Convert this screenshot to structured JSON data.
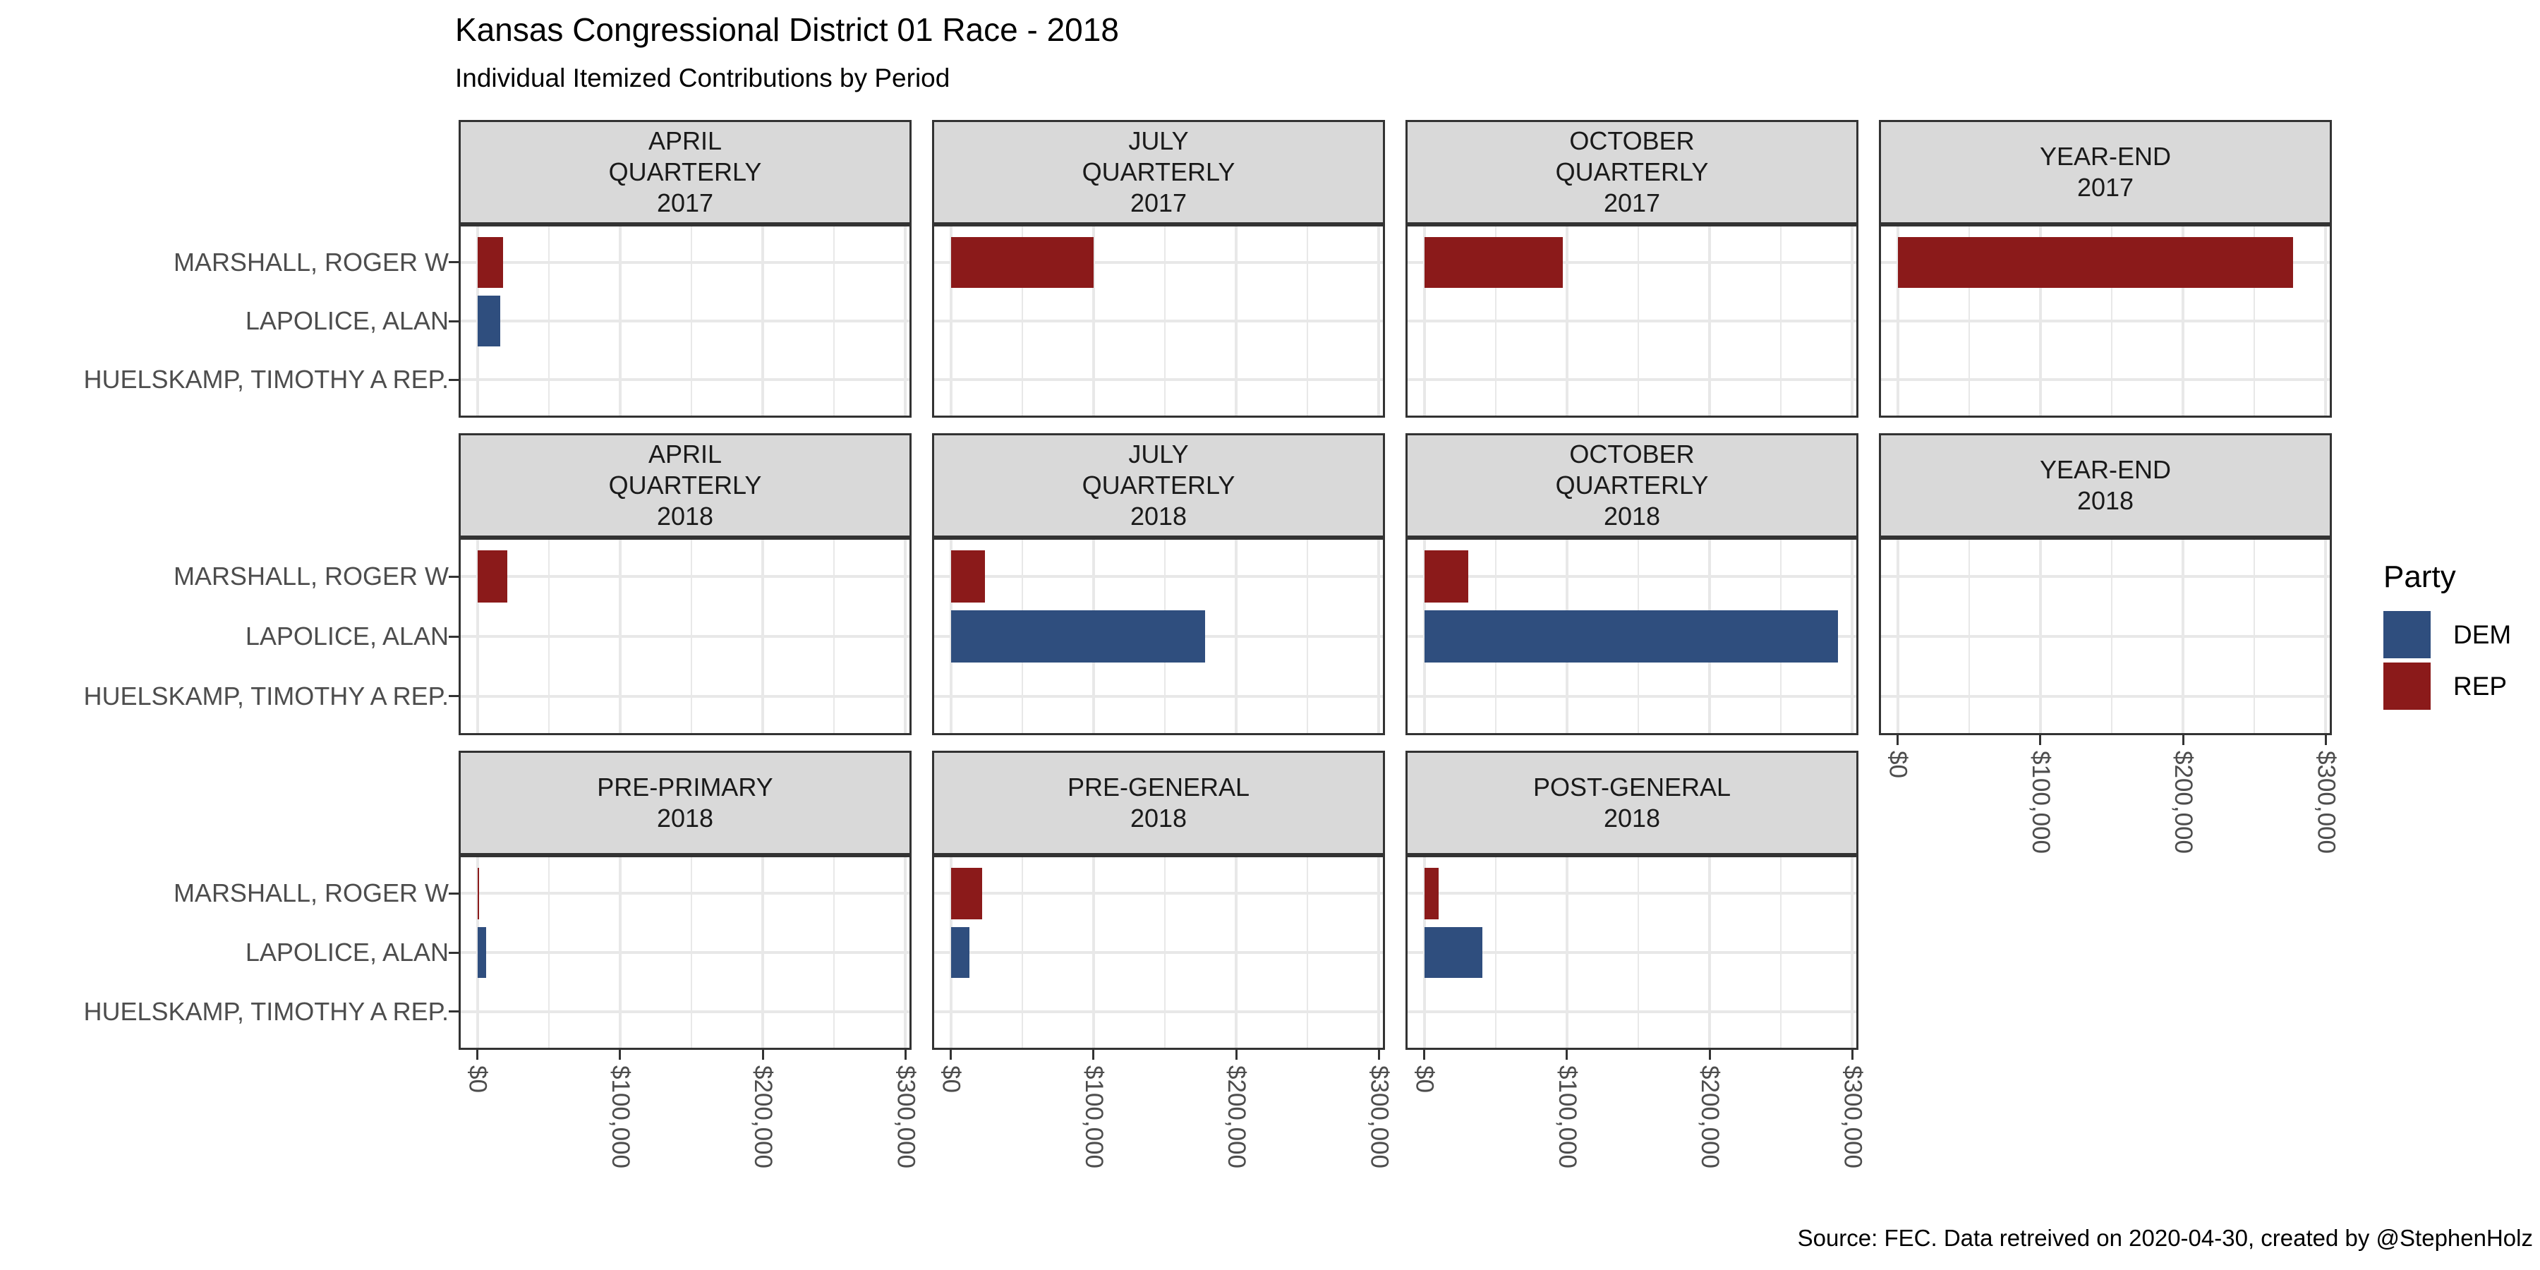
{
  "title": "Kansas Congressional District 01 Race - 2018",
  "subtitle": "Individual Itemized Contributions by Period",
  "caption": "Source: FEC. Data retreived on 2020-04-30, created by @StephenHolz",
  "legend": {
    "title": "Party",
    "position": "right",
    "items": [
      {
        "label": "DEM",
        "color": "#2F4E7E"
      },
      {
        "label": "REP",
        "color": "#8B1A1A"
      }
    ]
  },
  "colors": {
    "strip_background": "#D9D9D9",
    "panel_border": "#333333",
    "grid": "#E8E8E8",
    "axis_text": "#4D4D4D",
    "dem": "#2F4E7E",
    "rep": "#8B1A1A"
  },
  "chart_data": {
    "type": "bar",
    "orientation": "horizontal",
    "title": "Kansas Congressional District 01 Race - 2018",
    "subtitle": "Individual Itemized Contributions by Period",
    "grid": "on",
    "legend_position": "right",
    "candidates": [
      "MARSHALL, ROGER W",
      "LAPOLICE, ALAN",
      "HUELSKAMP, TIMOTHY A REP."
    ],
    "party_by_candidate": {
      "MARSHALL, ROGER W": "REP",
      "LAPOLICE, ALAN": "DEM",
      "HUELSKAMP, TIMOTHY A REP.": "REP"
    },
    "x_tick_labels": [
      "$0",
      "$100,000",
      "$200,000",
      "$300,000"
    ],
    "x_tick_values": [
      0,
      100000,
      200000,
      300000
    ],
    "xlim": [
      0,
      300000
    ],
    "facets": [
      {
        "row": 0,
        "col": 0,
        "title_lines": [
          "APRIL",
          "QUARTERLY",
          "2017"
        ],
        "x_axis": false,
        "bars": [
          {
            "candidate_index": 0,
            "party": "REP",
            "value": 18000
          },
          {
            "candidate_index": 1,
            "party": "DEM",
            "value": 16000
          }
        ]
      },
      {
        "row": 0,
        "col": 1,
        "title_lines": [
          "JULY",
          "QUARTERLY",
          "2017"
        ],
        "x_axis": false,
        "bars": [
          {
            "candidate_index": 0,
            "party": "REP",
            "value": 100000
          }
        ]
      },
      {
        "row": 0,
        "col": 2,
        "title_lines": [
          "OCTOBER",
          "QUARTERLY",
          "2017"
        ],
        "x_axis": false,
        "bars": [
          {
            "candidate_index": 0,
            "party": "REP",
            "value": 97000
          }
        ]
      },
      {
        "row": 0,
        "col": 3,
        "title_lines": [
          "YEAR-END",
          "2017"
        ],
        "x_axis": false,
        "bars": [
          {
            "candidate_index": 0,
            "party": "REP",
            "value": 277000
          }
        ]
      },
      {
        "row": 1,
        "col": 0,
        "title_lines": [
          "APRIL",
          "QUARTERLY",
          "2018"
        ],
        "x_axis": false,
        "bars": [
          {
            "candidate_index": 0,
            "party": "REP",
            "value": 21000
          }
        ]
      },
      {
        "row": 1,
        "col": 1,
        "title_lines": [
          "JULY",
          "QUARTERLY",
          "2018"
        ],
        "x_axis": false,
        "bars": [
          {
            "candidate_index": 0,
            "party": "REP",
            "value": 24000
          },
          {
            "candidate_index": 1,
            "party": "DEM",
            "value": 178000
          }
        ]
      },
      {
        "row": 1,
        "col": 2,
        "title_lines": [
          "OCTOBER",
          "QUARTERLY",
          "2018"
        ],
        "x_axis": false,
        "bars": [
          {
            "candidate_index": 0,
            "party": "REP",
            "value": 31000
          },
          {
            "candidate_index": 1,
            "party": "DEM",
            "value": 290000
          }
        ]
      },
      {
        "row": 1,
        "col": 3,
        "title_lines": [
          "YEAR-END",
          "2018"
        ],
        "x_axis": true,
        "bars": []
      },
      {
        "row": 2,
        "col": 0,
        "title_lines": [
          "PRE-PRIMARY",
          "2018"
        ],
        "x_axis": true,
        "bars": [
          {
            "candidate_index": 0,
            "party": "REP",
            "value": 1000
          },
          {
            "candidate_index": 1,
            "party": "DEM",
            "value": 6000
          }
        ]
      },
      {
        "row": 2,
        "col": 1,
        "title_lines": [
          "PRE-GENERAL",
          "2018"
        ],
        "x_axis": true,
        "bars": [
          {
            "candidate_index": 0,
            "party": "REP",
            "value": 22000
          },
          {
            "candidate_index": 1,
            "party": "DEM",
            "value": 13000
          }
        ]
      },
      {
        "row": 2,
        "col": 2,
        "title_lines": [
          "POST-GENERAL",
          "2018"
        ],
        "x_axis": true,
        "bars": [
          {
            "candidate_index": 0,
            "party": "REP",
            "value": 10000
          },
          {
            "candidate_index": 1,
            "party": "DEM",
            "value": 41000
          }
        ]
      }
    ]
  }
}
